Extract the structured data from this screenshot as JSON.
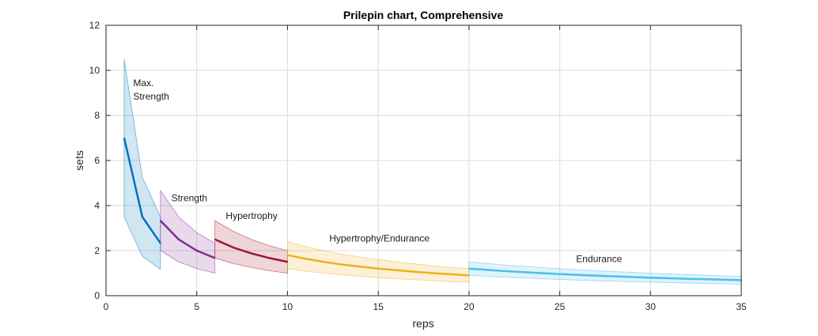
{
  "chart_data": {
    "type": "line",
    "title": "Prilepin chart, Comprehensive",
    "xlabel": "reps",
    "ylabel": "sets",
    "xlim": [
      0,
      35
    ],
    "ylim": [
      0,
      12
    ],
    "xticks": [
      0,
      5,
      10,
      15,
      20,
      25,
      30,
      35
    ],
    "yticks": [
      0,
      2,
      4,
      6,
      8,
      10,
      12
    ],
    "grid": true,
    "series": [
      {
        "name": "Max. Strength",
        "label_lines": [
          "Max.",
          "Strength"
        ],
        "label_at": [
          1.5,
          9.3
        ],
        "color": "#0072BD",
        "x": [
          1,
          2,
          3
        ],
        "y": [
          7,
          3.5,
          2.33
        ],
        "upper": [
          10.5,
          5.25,
          3.5
        ],
        "lower": [
          3.5,
          1.75,
          1.17
        ]
      },
      {
        "name": "Strength",
        "label_lines": [
          "Strength"
        ],
        "label_at": [
          3.6,
          4.2
        ],
        "color": "#7E2F8E",
        "x": [
          3,
          4,
          5,
          6
        ],
        "y": [
          3.33,
          2.5,
          2.0,
          1.67
        ],
        "upper": [
          4.67,
          3.5,
          2.8,
          2.33
        ],
        "lower": [
          2.0,
          1.5,
          1.2,
          1.0
        ]
      },
      {
        "name": "Hypertrophy",
        "label_lines": [
          "Hypertrophy"
        ],
        "label_at": [
          6.6,
          3.4
        ],
        "color": "#A2142F",
        "x": [
          6,
          7,
          8,
          9,
          10
        ],
        "y": [
          2.5,
          2.14,
          1.88,
          1.67,
          1.5
        ],
        "upper": [
          3.33,
          2.86,
          2.5,
          2.22,
          2.0
        ],
        "lower": [
          1.67,
          1.43,
          1.25,
          1.11,
          1.0
        ]
      },
      {
        "name": "Hypertrophy/Endurance",
        "label_lines": [
          "Hypertrophy/Endurance"
        ],
        "label_at": [
          12.3,
          2.4
        ],
        "color": "#EDB120",
        "x": [
          10,
          11,
          12,
          13,
          14,
          15,
          16,
          17,
          18,
          19,
          20
        ],
        "y": [
          1.8,
          1.64,
          1.5,
          1.38,
          1.29,
          1.2,
          1.13,
          1.06,
          1.0,
          0.95,
          0.9
        ],
        "upper": [
          2.4,
          2.18,
          2.0,
          1.85,
          1.71,
          1.6,
          1.5,
          1.41,
          1.33,
          1.26,
          1.2
        ],
        "lower": [
          1.2,
          1.09,
          1.0,
          0.92,
          0.86,
          0.8,
          0.75,
          0.71,
          0.67,
          0.63,
          0.6
        ]
      },
      {
        "name": "Endurance",
        "label_lines": [
          "Endurance"
        ],
        "label_at": [
          25.9,
          1.5
        ],
        "color": "#4DBEEE",
        "x": [
          20,
          22,
          24,
          26,
          28,
          30,
          32,
          34,
          35
        ],
        "y": [
          1.2,
          1.09,
          1.0,
          0.92,
          0.86,
          0.8,
          0.75,
          0.71,
          0.69
        ],
        "upper": [
          1.5,
          1.36,
          1.25,
          1.15,
          1.07,
          1.0,
          0.94,
          0.88,
          0.86
        ],
        "lower": [
          0.9,
          0.82,
          0.75,
          0.69,
          0.64,
          0.6,
          0.56,
          0.53,
          0.51
        ]
      }
    ]
  }
}
